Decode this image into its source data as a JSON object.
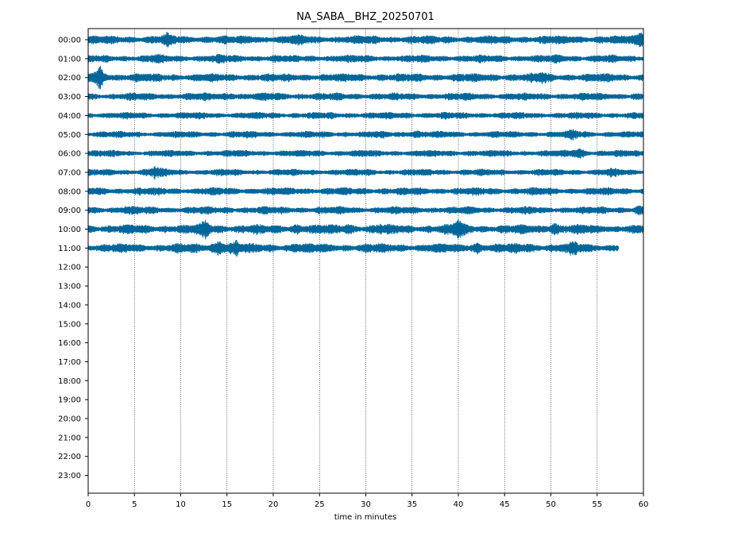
{
  "chart_data": {
    "type": "line",
    "title": "NA_SABA__BHZ_20250701",
    "xlabel": "time in minutes",
    "ylabel": "",
    "xlim": [
      0,
      60
    ],
    "x_ticks": [
      "0",
      "5",
      "10",
      "15",
      "20",
      "25",
      "30",
      "35",
      "40",
      "45",
      "50",
      "55",
      "60"
    ],
    "y_tick_labels": [
      "00:00",
      "01:00",
      "02:00",
      "03:00",
      "04:00",
      "05:00",
      "06:00",
      "07:00",
      "08:00",
      "09:00",
      "10:00",
      "11:00",
      "12:00",
      "13:00",
      "14:00",
      "15:00",
      "16:00",
      "17:00",
      "18:00",
      "19:00",
      "20:00",
      "21:00",
      "22:00",
      "23:00"
    ],
    "grid": "vertical dotted lines at each 5 minutes",
    "trace_color": "#006699",
    "series": [
      {
        "hour": "00:00",
        "end_minute": 60,
        "amplitude": 1.0,
        "bursts": [
          [
            8.5,
            1.5
          ],
          [
            17.5,
            1.2
          ],
          [
            22.5,
            1.3
          ],
          [
            59.8,
            2.0
          ]
        ]
      },
      {
        "hour": "01:00",
        "end_minute": 60,
        "amplitude": 0.9,
        "bursts": [
          [
            7.5,
            1.3
          ],
          [
            14.5,
            1.2
          ],
          [
            51.0,
            1.3
          ],
          [
            59.5,
            1.1
          ]
        ]
      },
      {
        "hour": "02:00",
        "end_minute": 60,
        "amplitude": 1.0,
        "bursts": [
          [
            1.3,
            2.5
          ],
          [
            49.0,
            1.4
          ]
        ]
      },
      {
        "hour": "03:00",
        "end_minute": 60,
        "amplitude": 0.9,
        "bursts": [
          [
            15.5,
            1.5
          ],
          [
            20.0,
            1.1
          ],
          [
            59.0,
            1.1
          ]
        ]
      },
      {
        "hour": "04:00",
        "end_minute": 60,
        "amplitude": 0.8,
        "bursts": [
          [
            35.0,
            1.1
          ]
        ]
      },
      {
        "hour": "05:00",
        "end_minute": 60,
        "amplitude": 0.8,
        "bursts": [
          [
            35.3,
            1.6
          ],
          [
            52.5,
            1.5
          ]
        ]
      },
      {
        "hour": "06:00",
        "end_minute": 60,
        "amplitude": 0.8,
        "bursts": [
          [
            53.0,
            1.9
          ]
        ]
      },
      {
        "hour": "07:00",
        "end_minute": 60,
        "amplitude": 0.8,
        "bursts": [
          [
            7.2,
            1.8
          ],
          [
            56.5,
            1.2
          ]
        ]
      },
      {
        "hour": "08:00",
        "end_minute": 60,
        "amplitude": 0.9,
        "bursts": [
          [
            0.5,
            1.1
          ],
          [
            32.0,
            1.1
          ],
          [
            48.5,
            1.1
          ]
        ]
      },
      {
        "hour": "09:00",
        "end_minute": 60,
        "amplitude": 0.9,
        "bursts": [
          [
            4.0,
            1.3
          ],
          [
            59.5,
            1.4
          ]
        ]
      },
      {
        "hour": "10:00",
        "end_minute": 60,
        "amplitude": 1.1,
        "bursts": [
          [
            12.7,
            1.8
          ],
          [
            22.5,
            1.4
          ],
          [
            28.0,
            1.5
          ],
          [
            31.5,
            1.3
          ],
          [
            40.0,
            1.9
          ],
          [
            50.3,
            1.8
          ]
        ]
      },
      {
        "hour": "11:00",
        "end_minute": 57.3,
        "amplitude": 1.1,
        "bursts": [
          [
            14.2,
            2.2
          ],
          [
            16.0,
            1.7
          ],
          [
            22.5,
            1.3
          ],
          [
            42.0,
            1.5
          ],
          [
            47.5,
            1.3
          ],
          [
            52.5,
            1.4
          ]
        ]
      }
    ]
  }
}
